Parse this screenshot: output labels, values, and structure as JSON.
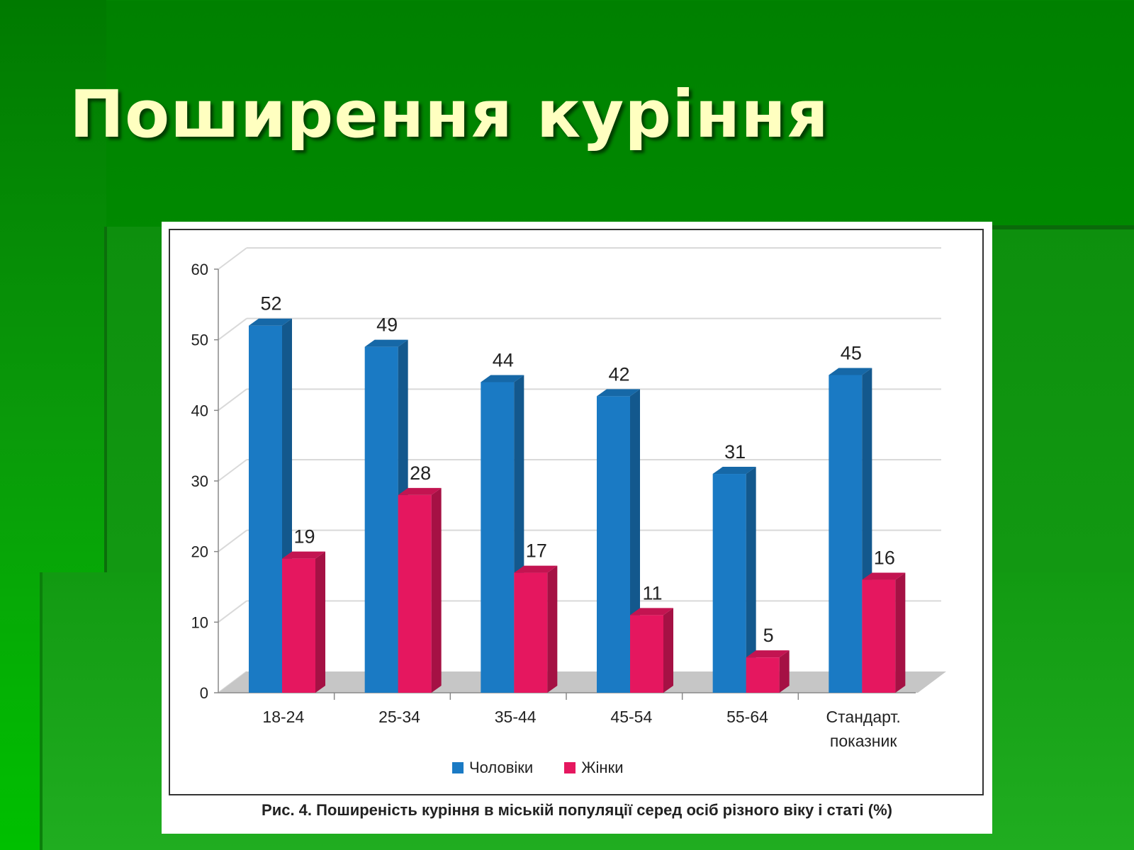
{
  "slide": {
    "title": "Поширення куріння"
  },
  "chart_data": {
    "type": "bar",
    "title": "",
    "caption": "Рис. 4. Поширеність куріння в міській популяції серед осіб різного віку і статі (%)",
    "categories": [
      "18-24",
      "25-34",
      "35-44",
      "45-54",
      "55-64",
      "Стандарт.\nпоказник"
    ],
    "series": [
      {
        "name": "Чоловіки",
        "color": "#1a7ac4",
        "values": [
          52,
          49,
          44,
          42,
          31,
          45
        ]
      },
      {
        "name": "Жінки",
        "color": "#e5175f",
        "values": [
          19,
          28,
          17,
          11,
          5,
          16
        ]
      }
    ],
    "ylim": [
      0,
      60
    ],
    "yticks": [
      0,
      10,
      20,
      30,
      40,
      50,
      60
    ],
    "grid": true,
    "legend": "bottom",
    "xlabel": "",
    "ylabel": ""
  }
}
